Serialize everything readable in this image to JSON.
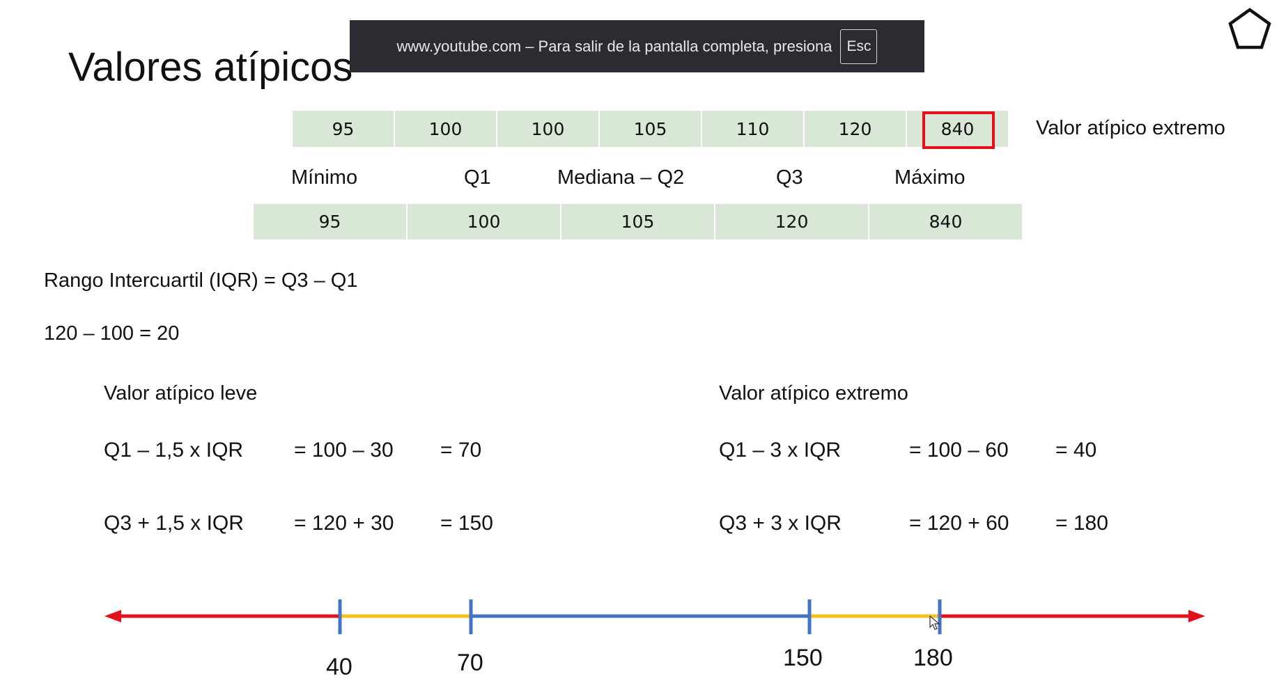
{
  "slide": {
    "title": "Valores atípicos"
  },
  "fullscreen_banner": {
    "message": "www.youtube.com – Para salir de la pantalla completa, presiona",
    "key_label": "Esc"
  },
  "icons": {
    "pentagon": "pentagon-icon",
    "cursor": "mouse-cursor-icon"
  },
  "data_values": [
    "95",
    "100",
    "100",
    "105",
    "110",
    "120",
    "840"
  ],
  "outlier_note": "Valor atípico extremo",
  "summary": {
    "headers": [
      "Mínimo",
      "Q1",
      "Mediana – Q2",
      "Q3",
      "Máximo"
    ],
    "values": [
      "95",
      "100",
      "105",
      "120",
      "840"
    ]
  },
  "iqr": {
    "definition": "Rango Intercuartil (IQR) =  Q3 – Q1",
    "calculation": "120 – 100 = 20"
  },
  "mild": {
    "title": "Valor atípico leve",
    "lower": {
      "formula": "Q1 – 1,5 x IQR",
      "step": "= 100 – 30",
      "result": "= 70"
    },
    "upper": {
      "formula": "Q3 + 1,5 x IQR",
      "step": "= 120 + 30",
      "result": "= 150"
    }
  },
  "extreme": {
    "title": "Valor atípico extremo",
    "lower": {
      "formula": "Q1 – 3 x IQR",
      "step": "= 100 – 60",
      "result": "= 40"
    },
    "upper": {
      "formula": "Q3 + 3 x IQR",
      "step": "= 120 + 60",
      "result": "= 180"
    }
  },
  "number_line": {
    "ticks": [
      "40",
      "70",
      "150",
      "180"
    ],
    "colors": {
      "extreme": "#e3101a",
      "mild": "#f4c21c",
      "normal": "#4472c4",
      "tick": "#4472c4"
    }
  }
}
